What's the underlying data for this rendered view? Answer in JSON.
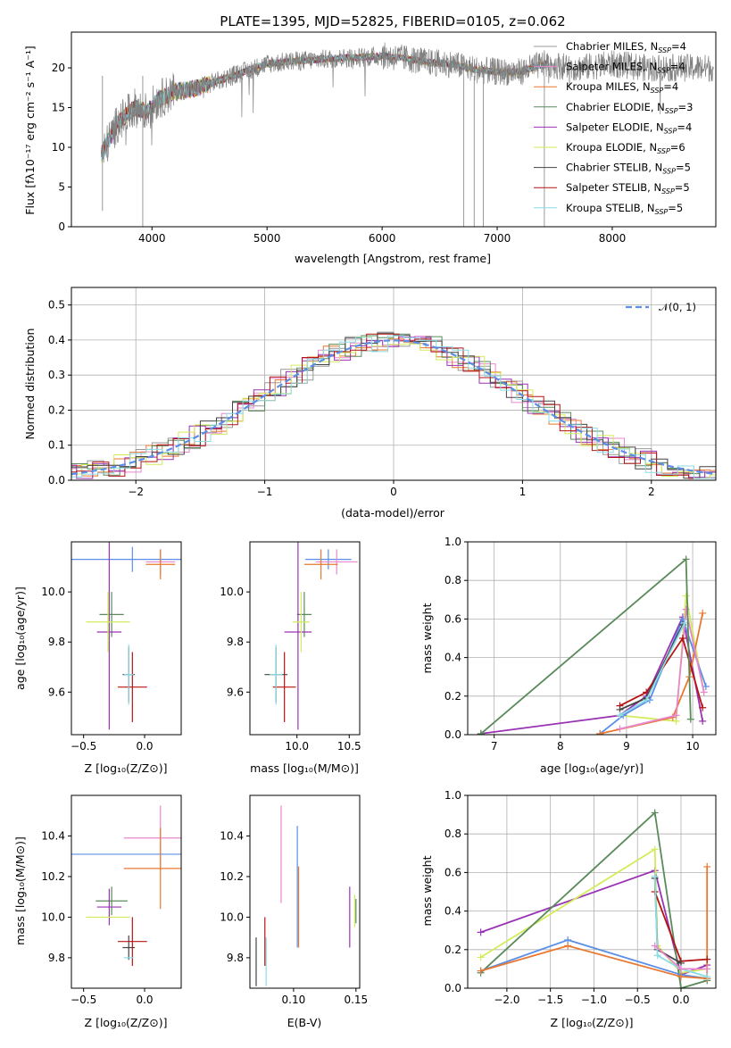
{
  "title": "PLATE=1395, MJD=52825, FIBERID=0105, z=0.062",
  "models": [
    {
      "name": "Chabrier MILES, N",
      "nssp": "4",
      "color": "#999999"
    },
    {
      "name": "Salpeter MILES, N",
      "nssp": "4",
      "color": "#e887d0"
    },
    {
      "name": "Kroupa MILES, N",
      "nssp": "4",
      "color": "#e8782f"
    },
    {
      "name": "Chabrier ELODIE, N",
      "nssp": "3",
      "color": "#5a8a5a"
    },
    {
      "name": "Salpeter ELODIE, N",
      "nssp": "4",
      "color": "#9a32b4"
    },
    {
      "name": "Kroupa ELODIE, N",
      "nssp": "6",
      "color": "#d2ec5a"
    },
    {
      "name": "Chabrier STELIB, N",
      "nssp": "5",
      "color": "#444444"
    },
    {
      "name": "Salpeter STELIB, N",
      "nssp": "5",
      "color": "#b41414"
    },
    {
      "name": "Kroupa STELIB, N",
      "nssp": "5",
      "color": "#8cdce6"
    }
  ],
  "ssp_subscript": "SSP",
  "chart_data": [
    {
      "type": "line",
      "panel": "spectrum",
      "xlabel": "wavelength [Angstrom, rest frame]",
      "ylabel": "Flux [fλ10⁻¹⁷ erg cm⁻² s⁻¹ A⁻¹]",
      "xlim": [
        3300,
        8900
      ],
      "ylim": [
        0,
        24.5
      ],
      "xticks": [
        "4000",
        "5000",
        "6000",
        "7000",
        "8000"
      ],
      "yticks": [
        "0",
        "5",
        "10",
        "15",
        "20"
      ],
      "continuum": [
        [
          3560,
          9
        ],
        [
          3700,
          13
        ],
        [
          3850,
          15
        ],
        [
          3950,
          14.5
        ],
        [
          4050,
          16
        ],
        [
          4200,
          17
        ],
        [
          4400,
          17.5
        ],
        [
          4600,
          18.5
        ],
        [
          4800,
          19.5
        ],
        [
          5000,
          20.5
        ],
        [
          5200,
          20.8
        ],
        [
          5400,
          21
        ],
        [
          5600,
          21.2
        ],
        [
          5800,
          21.3
        ],
        [
          6000,
          21.5
        ],
        [
          6200,
          21.2
        ],
        [
          6400,
          20.7
        ],
        [
          6600,
          20.5
        ],
        [
          6800,
          19.8
        ],
        [
          7000,
          19.5
        ],
        [
          7200,
          19.5
        ],
        [
          7400,
          20.5
        ],
        [
          7700,
          20
        ],
        [
          8000,
          20.5
        ],
        [
          8300,
          20
        ],
        [
          8500,
          20
        ],
        [
          8900,
          20
        ]
      ],
      "note_spectrum_fit_lines_only_to": 7450
    },
    {
      "type": "histogram",
      "panel": "residuals",
      "xlabel": "(data-model)/error",
      "ylabel": "Normed distribution",
      "xlim": [
        -2.5,
        2.5
      ],
      "ylim": [
        0,
        0.55
      ],
      "xticks": [
        "−2",
        "−1",
        "0",
        "1",
        "2"
      ],
      "yticks": [
        "0.0",
        "0.1",
        "0.2",
        "0.3",
        "0.4",
        "0.5"
      ],
      "bin_width": 0.125,
      "reference_curve": "𝒩(0, 1)",
      "reference_color": "#5b8ee6"
    },
    {
      "type": "scatter",
      "panel": "age-vs-Z",
      "xlabel": "Z [log₁₀(Z/Z⊙)]",
      "ylabel": "age  [log₁₀(age/yr)]",
      "xlim": [
        -0.6,
        0.3
      ],
      "ylim": [
        9.43,
        10.2
      ],
      "xticks": [
        "−0.5",
        "0.0"
      ],
      "yticks": [
        "9.6",
        "9.8",
        "10.0"
      ],
      "points": [
        {
          "x": -0.1,
          "xerr": 0.55,
          "y": 10.13,
          "yerr": 0.05,
          "c": "#5b8ee6"
        },
        {
          "x": 0.13,
          "xerr": 0.12,
          "y": 10.12,
          "yerr": 0.05,
          "c": "#e887d0"
        },
        {
          "x": 0.13,
          "xerr": 0.12,
          "y": 10.11,
          "yerr": 0.06,
          "c": "#e8782f"
        },
        {
          "x": -0.27,
          "xerr": 0.1,
          "y": 9.91,
          "yerr": 0.09,
          "c": "#5a8a5a"
        },
        {
          "x": -0.29,
          "xerr": 0.1,
          "y": 9.84,
          "yerr": 0.39,
          "c": "#9a32b4"
        },
        {
          "x": -0.3,
          "xerr": 0.18,
          "y": 9.88,
          "yerr": 0.12,
          "c": "#d2ec5a"
        },
        {
          "x": -0.13,
          "xerr": 0.05,
          "y": 9.67,
          "yerr": 0.11,
          "c": "#444444"
        },
        {
          "x": -0.1,
          "xerr": 0.12,
          "y": 9.62,
          "yerr": 0.14,
          "c": "#b41414"
        },
        {
          "x": -0.13,
          "xerr": 0.04,
          "y": 9.67,
          "yerr": 0.12,
          "c": "#8cdce6"
        }
      ]
    },
    {
      "type": "scatter",
      "panel": "age-vs-mass",
      "xlabel": "mass [log₁₀(M/M⊙)]",
      "xlim": [
        9.55,
        10.6
      ],
      "ylim": [
        9.43,
        10.2
      ],
      "xticks": [
        "9.5",
        "10.0",
        "10.5"
      ],
      "yticks": [
        "9.6",
        "9.8",
        "10.0"
      ],
      "points": [
        {
          "x": 10.3,
          "xerr": 0.22,
          "y": 10.13,
          "yerr": 0.04,
          "c": "#5b8ee6"
        },
        {
          "x": 10.38,
          "xerr": 0.2,
          "y": 10.12,
          "yerr": 0.05,
          "c": "#e887d0"
        },
        {
          "x": 10.23,
          "xerr": 0.16,
          "y": 10.11,
          "yerr": 0.06,
          "c": "#e8782f"
        },
        {
          "x": 10.07,
          "xerr": 0.07,
          "y": 9.91,
          "yerr": 0.09,
          "c": "#5a8a5a"
        },
        {
          "x": 10.01,
          "xerr": 0.13,
          "y": 9.84,
          "yerr": 0.39,
          "c": "#9a32b4"
        },
        {
          "x": 10.04,
          "xerr": 0.08,
          "y": 9.88,
          "yerr": 0.12,
          "c": "#d2ec5a"
        },
        {
          "x": 9.8,
          "xerr": 0.11,
          "y": 9.67,
          "yerr": 0.11,
          "c": "#444444"
        },
        {
          "x": 9.88,
          "xerr": 0.11,
          "y": 9.62,
          "yerr": 0.14,
          "c": "#b41414"
        },
        {
          "x": 9.8,
          "xerr": 0.06,
          "y": 9.67,
          "yerr": 0.12,
          "c": "#8cdce6"
        }
      ]
    },
    {
      "type": "line",
      "panel": "mass-weight-vs-age",
      "xlabel": "age  [log₁₀(age/yr)]",
      "ylabel": "mass weight",
      "xlim": [
        6.6,
        10.35
      ],
      "ylim": [
        0,
        1.0
      ],
      "xticks": [
        "7",
        "8",
        "9",
        "10"
      ],
      "yticks": [
        "0.0",
        "0.2",
        "0.4",
        "0.6",
        "0.8",
        "1.0"
      ],
      "series": [
        {
          "c": "#9a32b4",
          "x": [
            6.8,
            8.9,
            9.3,
            9.85,
            10.15
          ],
          "y": [
            0.005,
            0.1,
            0.2,
            0.61,
            0.07
          ]
        },
        {
          "c": "#d2ec5a",
          "x": [
            8.9,
            9.75,
            9.9,
            10.17
          ],
          "y": [
            0.1,
            0.07,
            0.72,
            0.22
          ]
        },
        {
          "c": "#5b8ee6",
          "x": [
            8.6,
            8.95,
            9.35,
            9.85,
            10.2
          ],
          "y": [
            0.005,
            0.1,
            0.18,
            0.6,
            0.25
          ]
        },
        {
          "c": "#e8782f",
          "x": [
            8.6,
            9.7,
            9.95,
            10.15
          ],
          "y": [
            0.005,
            0.09,
            0.3,
            0.63
          ]
        },
        {
          "c": "#e887d0",
          "x": [
            8.9,
            9.75,
            9.9,
            10.17
          ],
          "y": [
            0.03,
            0.1,
            0.65,
            0.22
          ]
        },
        {
          "c": "#b41414",
          "x": [
            8.9,
            9.3,
            9.85,
            10.15
          ],
          "y": [
            0.15,
            0.22,
            0.5,
            0.14
          ]
        },
        {
          "c": "#444444",
          "x": [
            8.9,
            9.3,
            9.85
          ],
          "y": [
            0.13,
            0.19,
            0.57
          ]
        },
        {
          "c": "#8cdce6",
          "x": [
            8.9,
            9.3,
            9.88
          ],
          "y": [
            0.1,
            0.18,
            0.58
          ]
        },
        {
          "c": "#5a8a5a",
          "x": [
            6.8,
            9.9,
            9.97
          ],
          "y": [
            0.005,
            0.91,
            0.08
          ]
        }
      ]
    },
    {
      "type": "scatter",
      "panel": "mass-vs-Z",
      "xlabel": "Z [log₁₀(Z/Z⊙)]",
      "ylabel": "mass [log₁₀(M/M⊙)]",
      "xlim": [
        -0.6,
        0.3
      ],
      "ylim": [
        9.65,
        10.6
      ],
      "xticks": [
        "−0.5",
        "0.0"
      ],
      "yticks": [
        "9.8",
        "10.0",
        "10.2",
        "10.4"
      ],
      "points": [
        {
          "x": -0.1,
          "xerr": 0.55,
          "y": 10.31,
          "yerr": 0.0,
          "c": "#5b8ee6"
        },
        {
          "x": 0.13,
          "xerr": 0.3,
          "y": 10.39,
          "yerr": 0.16,
          "c": "#e887d0"
        },
        {
          "x": 0.13,
          "xerr": 0.3,
          "y": 10.24,
          "yerr": 0.2,
          "c": "#e8782f"
        },
        {
          "x": -0.27,
          "xerr": 0.13,
          "y": 10.08,
          "yerr": 0.07,
          "c": "#5a8a5a"
        },
        {
          "x": -0.29,
          "xerr": 0.1,
          "y": 10.05,
          "yerr": 0.09,
          "c": "#9a32b4"
        },
        {
          "x": -0.3,
          "xerr": 0.18,
          "y": 10.0,
          "yerr": 0.0,
          "c": "#d2ec5a"
        },
        {
          "x": -0.13,
          "xerr": 0.05,
          "y": 9.85,
          "yerr": 0.06,
          "c": "#444444"
        },
        {
          "x": -0.1,
          "xerr": 0.12,
          "y": 9.88,
          "yerr": 0.12,
          "c": "#b41414"
        },
        {
          "x": -0.13,
          "xerr": 0.04,
          "y": 9.8,
          "yerr": 0.0,
          "c": "#8cdce6"
        }
      ]
    },
    {
      "type": "scatter",
      "panel": "mass-vs-EBV",
      "xlabel": "E(B-V)",
      "xlim": [
        0.065,
        0.153
      ],
      "ylim": [
        9.65,
        10.6
      ],
      "xticks": [
        "0.10",
        "0.15"
      ],
      "yticks": [
        "9.8",
        "10.0",
        "10.2",
        "10.4"
      ],
      "points": [
        {
          "x": 0.07,
          "y": 9.78,
          "yerr": 0.12,
          "c": "#444444"
        },
        {
          "x": 0.077,
          "y": 9.88,
          "yerr": 0.12,
          "c": "#b41414"
        },
        {
          "x": 0.078,
          "y": 9.78,
          "yerr": 0.12,
          "c": "#8cdce6"
        },
        {
          "x": 0.09,
          "y": 10.31,
          "yerr": 0.24,
          "c": "#e887d0"
        },
        {
          "x": 0.103,
          "y": 10.15,
          "yerr": 0.3,
          "c": "#5b8ee6"
        },
        {
          "x": 0.104,
          "y": 10.05,
          "yerr": 0.2,
          "c": "#e8782f"
        },
        {
          "x": 0.145,
          "y": 10.0,
          "yerr": 0.15,
          "c": "#9a32b4"
        },
        {
          "x": 0.149,
          "y": 10.03,
          "yerr": 0.08,
          "c": "#d2ec5a"
        },
        {
          "x": 0.15,
          "y": 10.03,
          "yerr": 0.06,
          "c": "#5a8a5a"
        }
      ]
    },
    {
      "type": "line",
      "panel": "mass-weight-vs-Z",
      "xlabel": "Z [log₁₀(Z/Z⊙)]",
      "ylabel": "mass weight",
      "xlim": [
        -2.45,
        0.4
      ],
      "ylim": [
        0,
        1.0
      ],
      "xticks": [
        "−2.0",
        "−1.5",
        "−1.0",
        "−0.5",
        "0.0"
      ],
      "yticks": [
        "0.0",
        "0.2",
        "0.4",
        "0.6",
        "0.8",
        "1.0"
      ],
      "series": [
        {
          "c": "#9a32b4",
          "x": [
            -2.3,
            -0.3,
            0.0,
            0.3
          ],
          "y": [
            0.29,
            0.61,
            0.07,
            0.12
          ]
        },
        {
          "c": "#d2ec5a",
          "x": [
            -2.3,
            -0.3,
            -0.27,
            0.0,
            0.3
          ],
          "y": [
            0.16,
            0.72,
            0.22,
            0.08,
            0.1
          ]
        },
        {
          "c": "#5a8a5a",
          "x": [
            -2.3,
            -0.3,
            0.0,
            0.3
          ],
          "y": [
            0.08,
            0.91,
            0.0,
            0.04
          ]
        },
        {
          "c": "#5b8ee6",
          "x": [
            -2.3,
            -1.3,
            0.0,
            0.3
          ],
          "y": [
            0.09,
            0.25,
            0.07,
            0.05
          ]
        },
        {
          "c": "#e8782f",
          "x": [
            -2.3,
            -1.3,
            0.0,
            0.3,
            0.3
          ],
          "y": [
            0.09,
            0.22,
            0.06,
            0.05,
            0.63
          ]
        },
        {
          "c": "#b41414",
          "x": [
            -0.3,
            0.0,
            0.3
          ],
          "y": [
            0.5,
            0.14,
            0.15
          ]
        },
        {
          "c": "#444444",
          "x": [
            -0.3,
            -0.27,
            0.0
          ],
          "y": [
            0.57,
            0.2,
            0.13
          ]
        },
        {
          "c": "#8cdce6",
          "x": [
            -0.3,
            -0.27,
            0.0,
            0.3
          ],
          "y": [
            0.58,
            0.17,
            0.1,
            0.06
          ]
        },
        {
          "c": "#e887d0",
          "x": [
            -0.3,
            0.0,
            0.3
          ],
          "y": [
            0.22,
            0.1,
            0.1
          ]
        }
      ]
    }
  ]
}
